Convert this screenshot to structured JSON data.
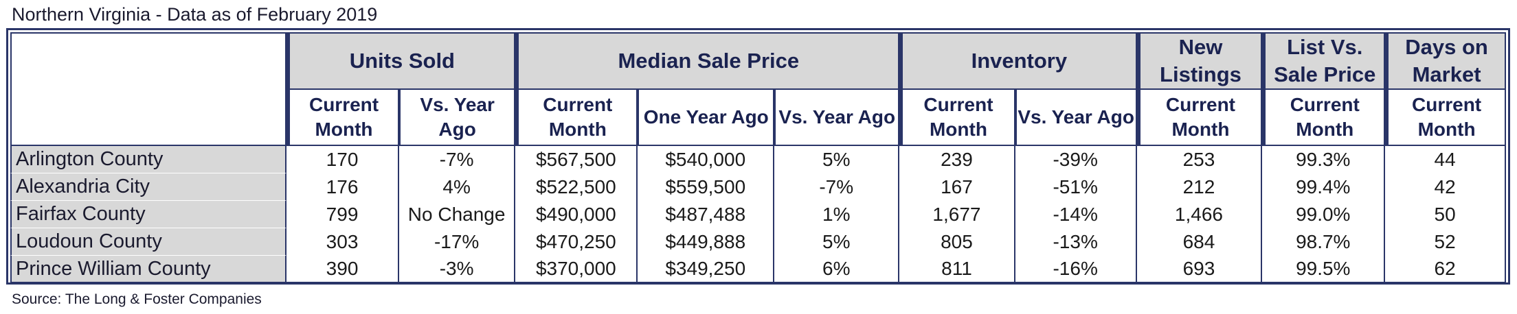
{
  "title": "Northern Virginia - Data as of February 2019",
  "source": "Source: The Long & Foster Companies",
  "groups": {
    "units_sold": "Units Sold",
    "median_sale_price": "Median Sale Price",
    "inventory": "Inventory",
    "new_listings": "New Listings",
    "list_vs_sale": "List Vs. Sale Price",
    "days_on_market": "Days on Market"
  },
  "subheaders": {
    "current_month": "Current Month",
    "vs_year_ago": "Vs. Year Ago",
    "one_year_ago": "One Year Ago"
  },
  "rows": [
    {
      "area": "Arlington County",
      "units_current": "170",
      "units_vs": "-7%",
      "price_current": "$567,500",
      "price_one_year": "$540,000",
      "price_vs": "5%",
      "inv_current": "239",
      "inv_vs": "-39%",
      "new_listings": "253",
      "list_vs_sale": "99.3%",
      "days_on_market": "44"
    },
    {
      "area": "Alexandria City",
      "units_current": "176",
      "units_vs": "4%",
      "price_current": "$522,500",
      "price_one_year": "$559,500",
      "price_vs": "-7%",
      "inv_current": "167",
      "inv_vs": "-51%",
      "new_listings": "212",
      "list_vs_sale": "99.4%",
      "days_on_market": "42"
    },
    {
      "area": "Fairfax County",
      "units_current": "799",
      "units_vs": "No Change",
      "price_current": "$490,000",
      "price_one_year": "$487,488",
      "price_vs": "1%",
      "inv_current": "1,677",
      "inv_vs": "-14%",
      "new_listings": "1,466",
      "list_vs_sale": "99.0%",
      "days_on_market": "50"
    },
    {
      "area": "Loudoun County",
      "units_current": "303",
      "units_vs": "-17%",
      "price_current": "$470,250",
      "price_one_year": "$449,888",
      "price_vs": "5%",
      "inv_current": "805",
      "inv_vs": "-13%",
      "new_listings": "684",
      "list_vs_sale": "98.7%",
      "days_on_market": "52"
    },
    {
      "area": "Prince William County",
      "units_current": "390",
      "units_vs": "-3%",
      "price_current": "$370,000",
      "price_one_year": "$349,250",
      "price_vs": "6%",
      "inv_current": "811",
      "inv_vs": "-16%",
      "new_listings": "693",
      "list_vs_sale": "99.5%",
      "days_on_market": "62"
    }
  ],
  "colors": {
    "border": "#2a3568",
    "header_fill": "#d8d8d8",
    "label_fill": "#d8d8d8"
  }
}
